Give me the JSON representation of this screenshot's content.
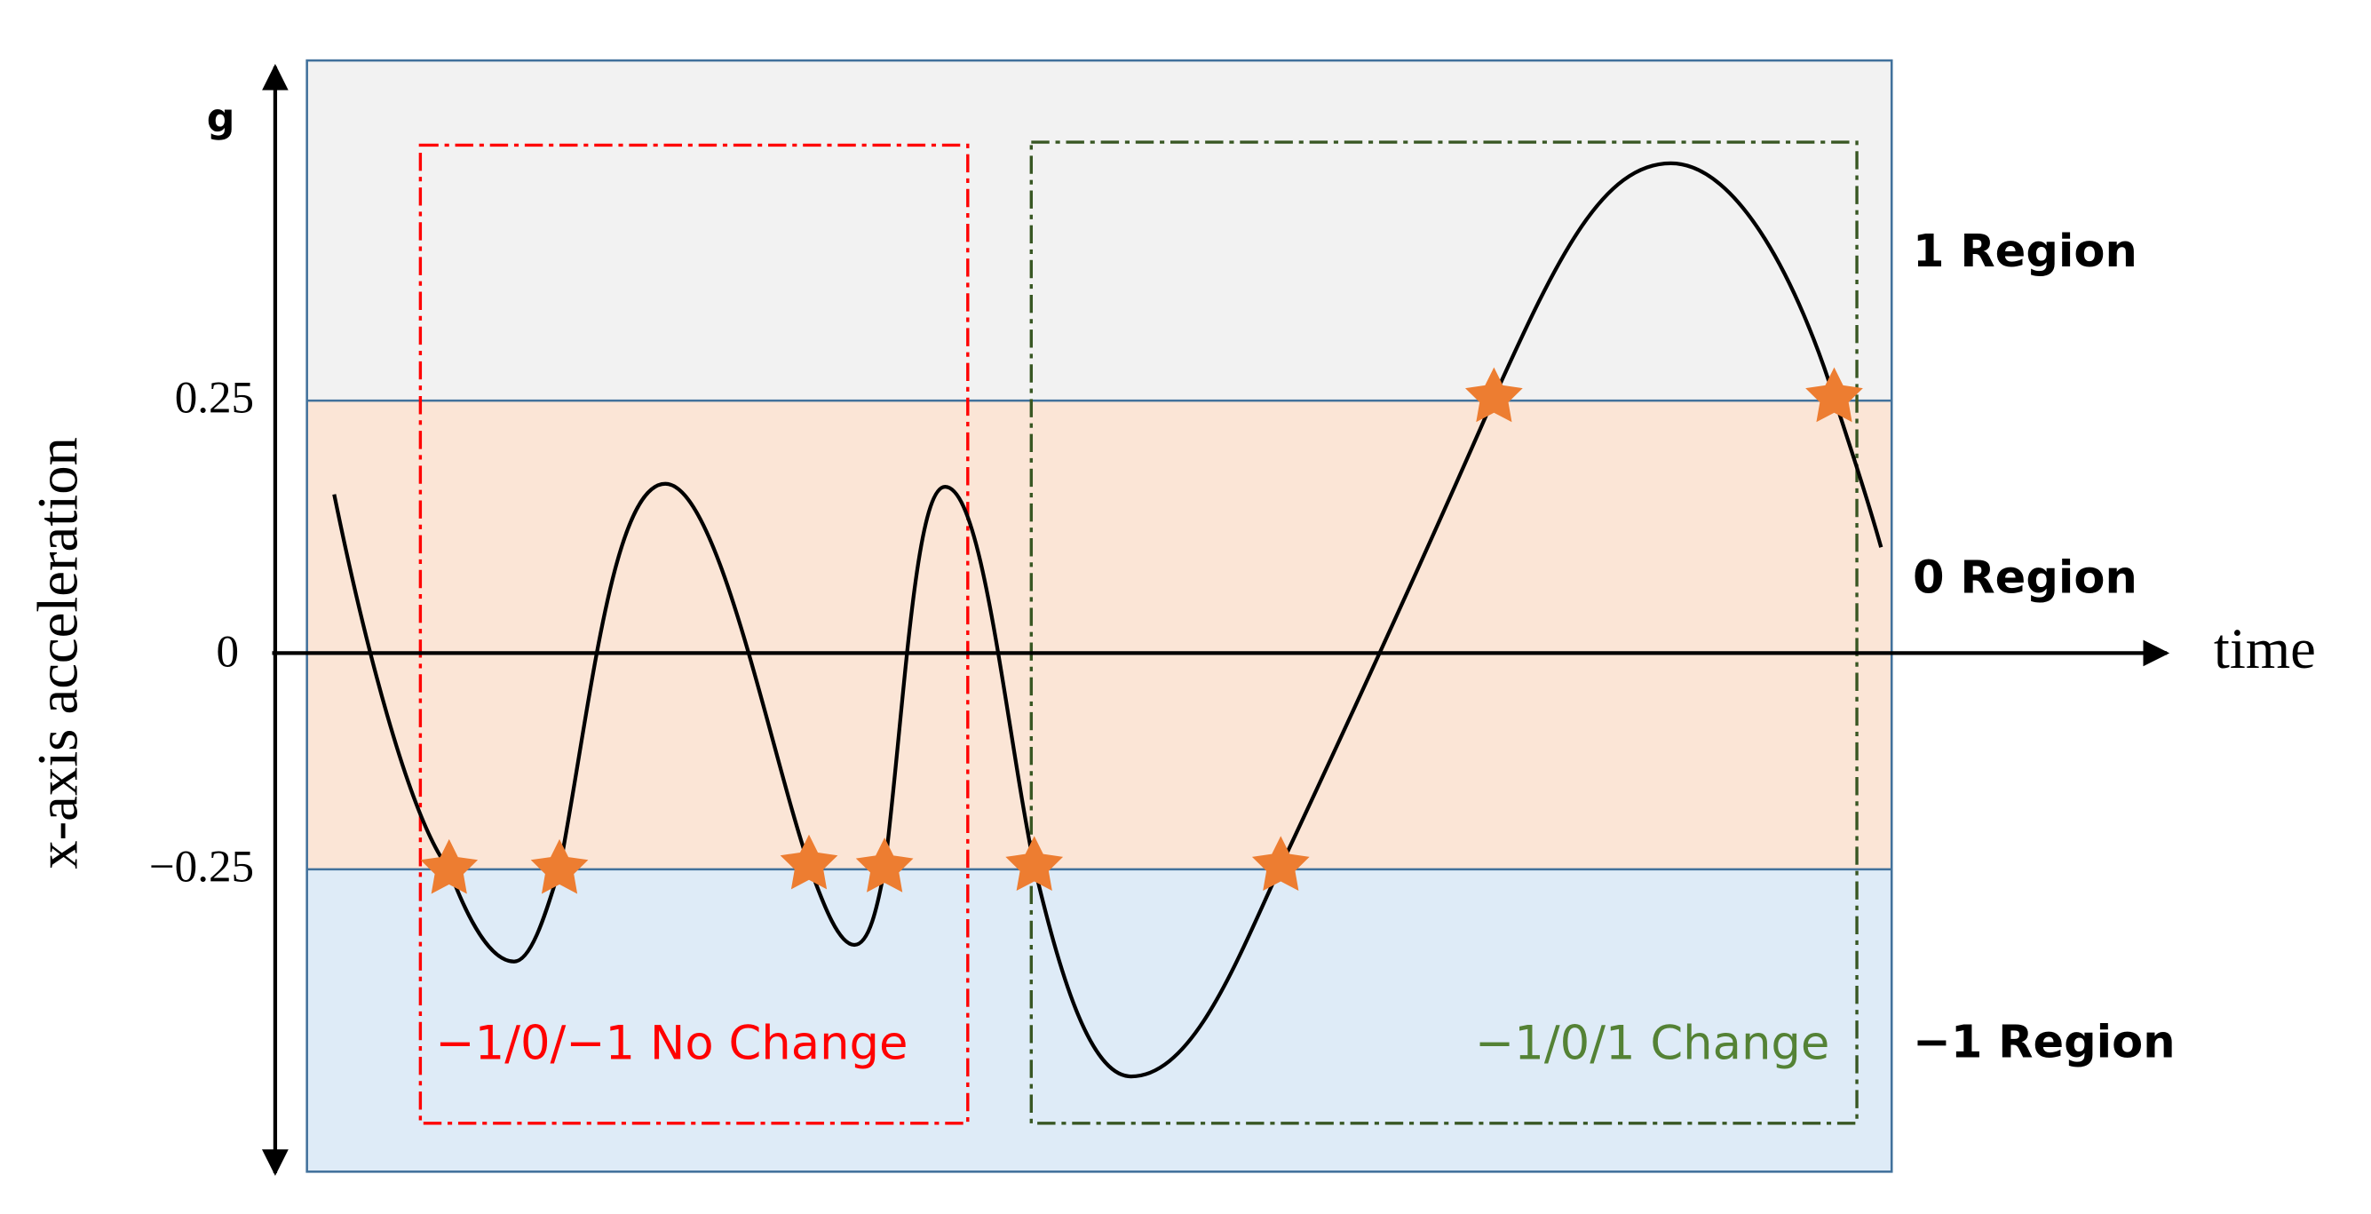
{
  "axis": {
    "unit": "g",
    "y_label": "x-axis acceleration",
    "x_label": "time",
    "ticks": [
      "0.25",
      "0",
      "−0.25"
    ]
  },
  "regions": [
    "1 Region",
    "0 Region",
    "−1 Region"
  ],
  "boxes": [
    "−1/0/−1 No Change",
    "−1/0/1 Change"
  ]
}
